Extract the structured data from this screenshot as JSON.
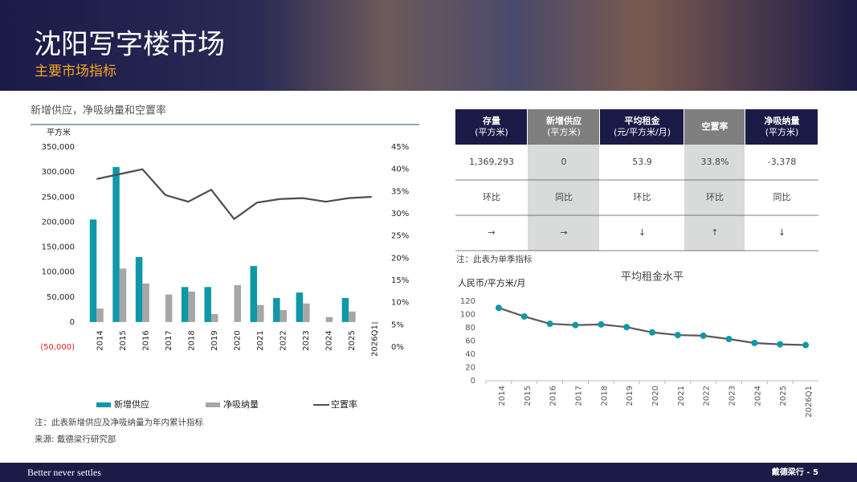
{
  "header": {
    "title": "沈阳写字楼市场",
    "subtitle": "主要市场指标"
  },
  "chart_data": [
    {
      "type": "combo",
      "title": "新增供应，净吸纳量和空置率",
      "y_label": "平方米",
      "categories": [
        "2014",
        "2015",
        "2016",
        "2017",
        "2018",
        "2019",
        "2020",
        "2021",
        "2022",
        "2023",
        "2024",
        "2025",
        "2026Q1"
      ],
      "series": [
        {
          "name": "新增供应",
          "type": "bar",
          "color": "#0e98a8",
          "values": [
            205000,
            310000,
            130000,
            0,
            70000,
            70000,
            0,
            112000,
            48000,
            59000,
            0,
            48000,
            0
          ]
        },
        {
          "name": "净吸纳量",
          "type": "bar",
          "color": "#a6a6a6",
          "values": [
            27000,
            107000,
            77000,
            55000,
            61000,
            16000,
            74000,
            34000,
            24000,
            37000,
            10000,
            21000,
            -3378
          ]
        },
        {
          "name": "空置率",
          "type": "line",
          "axis": "y2",
          "color": "#4d4d4d",
          "values": [
            37.8,
            38.9,
            40.0,
            34.2,
            32.7,
            35.4,
            28.8,
            32.5,
            33.3,
            33.5,
            32.7,
            33.5,
            33.8
          ]
        }
      ],
      "ylim": [
        -50000,
        350000
      ],
      "yticks": [
        {
          "value": -50000,
          "label": "(50,000)"
        },
        0,
        {
          "value": 50000,
          "label": "50,000"
        },
        {
          "value": 100000,
          "label": "100,000"
        },
        {
          "value": 150000,
          "label": "150,000"
        },
        {
          "value": 200000,
          "label": "200,000"
        },
        {
          "value": 250000,
          "label": "250,000"
        },
        {
          "value": 300000,
          "label": "300,000"
        },
        {
          "value": 350000,
          "label": "350,000"
        }
      ],
      "negative_tick_color": "#e02020",
      "y2lim": [
        0,
        45
      ],
      "y2ticks": [
        {
          "value": 0,
          "label": "0%"
        },
        {
          "value": 5,
          "label": "5%"
        },
        {
          "value": 10,
          "label": "10%"
        },
        {
          "value": 15,
          "label": "15%"
        },
        {
          "value": 20,
          "label": "20%"
        },
        {
          "value": 25,
          "label": "25%"
        },
        {
          "value": 30,
          "label": "30%"
        },
        {
          "value": 35,
          "label": "35%"
        },
        {
          "value": 40,
          "label": "40%"
        },
        {
          "value": 45,
          "label": "45%"
        }
      ],
      "notes": [
        "注：此表新增供应及净吸纳量为年内累计指标",
        "来源: 戴德梁行研究部"
      ]
    },
    {
      "type": "line",
      "title": "平均租金水平",
      "y_label": "人民币/平方米/月",
      "categories": [
        "2014",
        "2015",
        "2016",
        "2017",
        "2018",
        "2019",
        "2020",
        "2021",
        "2022",
        "2023",
        "2024",
        "2025",
        "2026Q1"
      ],
      "series": [
        {
          "color": "#595959",
          "marker_color": "#0e98a8",
          "values": [
            110,
            97,
            86,
            84,
            85,
            81,
            73,
            69,
            68,
            63,
            57,
            55,
            53.9
          ]
        }
      ],
      "ylim": [
        0,
        120
      ],
      "yticks": [
        0,
        20,
        40,
        60,
        80,
        100,
        120
      ]
    }
  ],
  "table": {
    "columns": [
      {
        "title": "存量",
        "unit": "(平方米)"
      },
      {
        "title": "新增供应",
        "unit": "(平方米)"
      },
      {
        "title": "平均租金",
        "unit": "(元/平方米/月)"
      },
      {
        "title": "空置率"
      },
      {
        "title": "净吸纳量",
        "unit": "(平方米)"
      }
    ],
    "rows": [
      [
        "1,369,293",
        "0",
        "53.9",
        "33.8%",
        "-3,378"
      ],
      [
        "环比",
        "同比",
        "环比",
        "环比",
        "同比"
      ],
      [
        "→",
        "→",
        "↓",
        "↑",
        "↓"
      ]
    ],
    "note": "注：此表为单季指标"
  },
  "footer": {
    "slogan": "Better never settles",
    "brand": "戴德梁行 - 5"
  }
}
